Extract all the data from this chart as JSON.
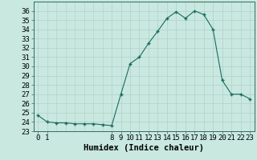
{
  "x": [
    0,
    1,
    2,
    3,
    4,
    5,
    6,
    7,
    8,
    9,
    10,
    11,
    12,
    13,
    14,
    15,
    16,
    17,
    18,
    19,
    20,
    21,
    22,
    23
  ],
  "y": [
    24.7,
    24.0,
    23.9,
    23.9,
    23.8,
    23.8,
    23.8,
    23.7,
    23.6,
    27.0,
    30.3,
    31.0,
    32.5,
    33.8,
    35.2,
    35.9,
    35.2,
    36.0,
    35.6,
    34.0,
    28.5,
    27.0,
    27.0,
    26.5
  ],
  "line_color": "#1a6b5e",
  "marker_color": "#1a6b5e",
  "bg_color": "#c8e8e0",
  "grid_color": "#b0d0c8",
  "xlabel": "Humidex (Indice chaleur)",
  "xlim": [
    -0.5,
    23.5
  ],
  "ylim": [
    23,
    37
  ],
  "yticks": [
    23,
    24,
    25,
    26,
    27,
    28,
    29,
    30,
    31,
    32,
    33,
    34,
    35,
    36
  ],
  "xticks": [
    0,
    1,
    8,
    9,
    10,
    11,
    12,
    13,
    14,
    15,
    16,
    17,
    18,
    19,
    20,
    21,
    22,
    23
  ],
  "tick_fontsize": 6.5,
  "xlabel_fontsize": 7.5
}
